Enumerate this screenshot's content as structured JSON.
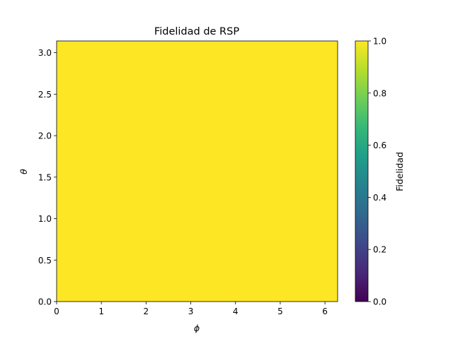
{
  "chart_data": {
    "type": "heatmap",
    "title": "Fidelidad de RSP",
    "xlabel": "ϕ",
    "ylabel": "θ",
    "xlim": [
      0,
      6.283
    ],
    "ylim": [
      0,
      3.1416
    ],
    "x_ticks": [
      0,
      1,
      2,
      3,
      4,
      5,
      6
    ],
    "y_ticks": [
      0.0,
      0.5,
      1.0,
      1.5,
      2.0,
      2.5,
      3.0
    ],
    "x_tick_labels": [
      "0",
      "1",
      "2",
      "3",
      "4",
      "5",
      "6"
    ],
    "y_tick_labels": [
      "0.0",
      "0.5",
      "1.0",
      "1.5",
      "2.0",
      "2.5",
      "3.0"
    ],
    "values_description_fill": 1.0,
    "z": [
      [
        1.0
      ]
    ],
    "colormap": "viridis",
    "colorbar": {
      "label": "Fidelidad",
      "range": [
        0.0,
        1.0
      ],
      "ticks": [
        0.0,
        0.2,
        0.4,
        0.6,
        0.8,
        1.0
      ],
      "tick_labels": [
        "0.0",
        "0.2",
        "0.4",
        "0.6",
        "0.8",
        "1.0"
      ]
    },
    "grid": false,
    "colors": {
      "fill": "#fde725",
      "viridis_stops": [
        "#440154",
        "#482878",
        "#3e4989",
        "#31688e",
        "#26828e",
        "#1f9e89",
        "#35b779",
        "#6ece58",
        "#b5de2b",
        "#fde725"
      ]
    }
  }
}
